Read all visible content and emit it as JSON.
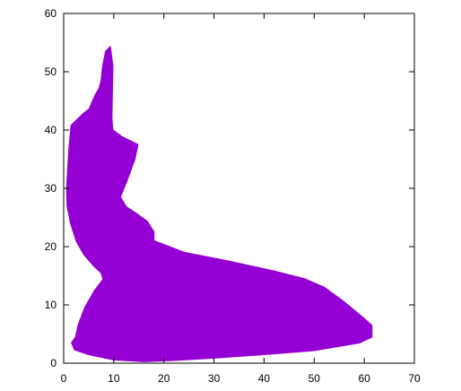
{
  "chart_data": {
    "type": "area",
    "title": "",
    "xlabel": "",
    "ylabel": "",
    "xlim": [
      0,
      70
    ],
    "ylim": [
      0,
      60
    ],
    "x_ticks": [
      0,
      10,
      20,
      30,
      40,
      50,
      60,
      70
    ],
    "y_ticks": [
      0,
      10,
      20,
      30,
      40,
      50,
      60
    ],
    "grid": false,
    "legend": "none",
    "series": [
      {
        "color": "#9400d3",
        "outline": [
          [
            9.3,
            54.3
          ],
          [
            9.8,
            51
          ],
          [
            9.7,
            47
          ],
          [
            9.6,
            42
          ],
          [
            9.8,
            40
          ],
          [
            11.7,
            38.8
          ],
          [
            14.8,
            37.5
          ],
          [
            14.2,
            35
          ],
          [
            12.7,
            31.5
          ],
          [
            11.3,
            28.5
          ],
          [
            12.5,
            26.8
          ],
          [
            14.8,
            25.5
          ],
          [
            16.7,
            24.3
          ],
          [
            18,
            22.5
          ],
          [
            18,
            21
          ],
          [
            24,
            19
          ],
          [
            33,
            17.5
          ],
          [
            42,
            15.8
          ],
          [
            48,
            14.5
          ],
          [
            52,
            13
          ],
          [
            56,
            10.5
          ],
          [
            59.5,
            8
          ],
          [
            61.5,
            6.5
          ],
          [
            61.5,
            4.5
          ],
          [
            59,
            3.5
          ],
          [
            50,
            2.2
          ],
          [
            40,
            1.5
          ],
          [
            30,
            0.9
          ],
          [
            22,
            0.5
          ],
          [
            16,
            0.3
          ],
          [
            10,
            0.6
          ],
          [
            5,
            1.5
          ],
          [
            2.2,
            2.3
          ],
          [
            1.6,
            3.5
          ],
          [
            2.4,
            4.5
          ],
          [
            2.9,
            6.5
          ],
          [
            4.2,
            9.5
          ],
          [
            6.2,
            12.5
          ],
          [
            7.9,
            14.4
          ],
          [
            7.5,
            15.5
          ],
          [
            6,
            16.7
          ],
          [
            4,
            18.7
          ],
          [
            2.5,
            21
          ],
          [
            1.4,
            24
          ],
          [
            0.7,
            27
          ],
          [
            0.6,
            30
          ],
          [
            0.8,
            33
          ],
          [
            1.1,
            37
          ],
          [
            1.5,
            40.8
          ],
          [
            2.7,
            41.8
          ],
          [
            3.9,
            42.8
          ],
          [
            5.1,
            43.6
          ],
          [
            5.6,
            44.6
          ],
          [
            6.3,
            46
          ],
          [
            7.1,
            47.2
          ],
          [
            7.5,
            48.5
          ],
          [
            7.8,
            51
          ],
          [
            8.4,
            53.5
          ]
        ]
      }
    ]
  }
}
